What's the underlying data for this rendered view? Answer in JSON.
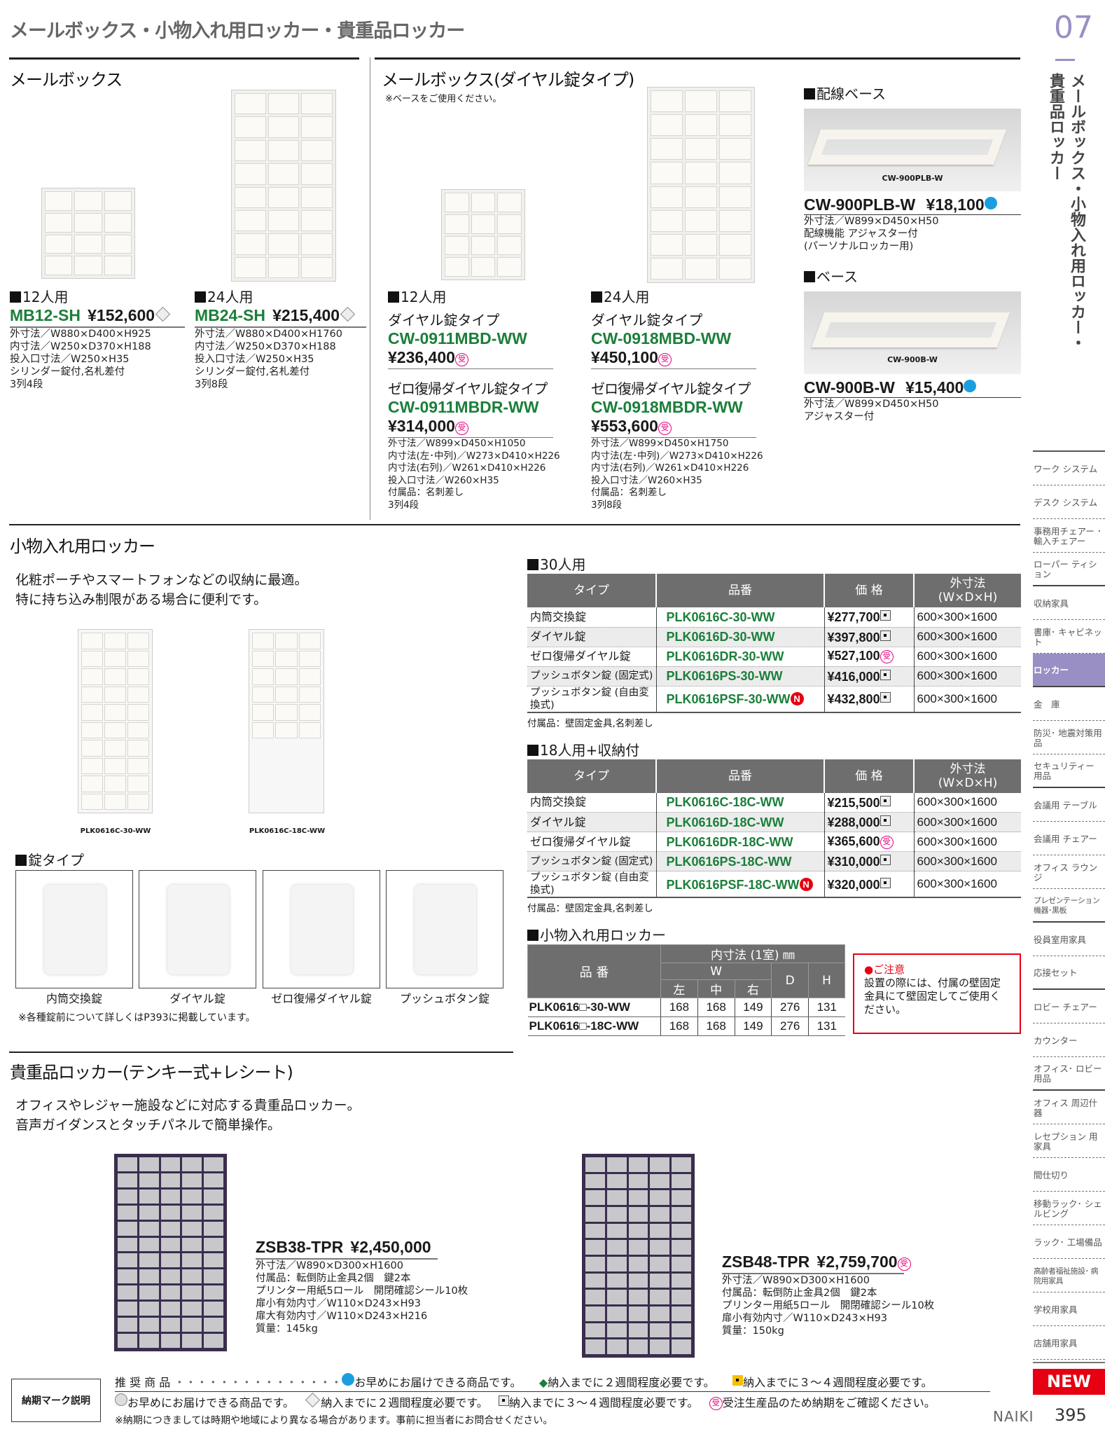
{
  "header": {
    "title": "メールボックス・小物入れ用ロッカー・貴重品ロッカー",
    "chapter": "07",
    "vertical_title_1": "メールボックス・小物入れ用ロッカー・",
    "vertical_title_2": "貴重品ロッカー"
  },
  "mailbox": {
    "heading": "メールボックス",
    "items": [
      {
        "label": "12人用",
        "model": "MB12-SH",
        "price": "¥152,600",
        "mark": "diamond",
        "specs": [
          "外寸法／W880×D400×H925",
          "内寸法／W250×D370×H188",
          "投入口寸法／W250×H35",
          "シリンダー錠付,名札差付",
          "3列4段"
        ]
      },
      {
        "label": "24人用",
        "model": "MB24-SH",
        "price": "¥215,400",
        "mark": "diamond",
        "specs": [
          "外寸法／W880×D400×H1760",
          "内寸法／W250×D370×H188",
          "投入口寸法／W250×H35",
          "シリンダー錠付,名札差付",
          "3列8段"
        ]
      }
    ]
  },
  "dial_mailbox": {
    "heading": "メールボックス(ダイヤル錠タイプ)",
    "note": "※ベースをご使用ください。",
    "items": [
      {
        "label": "12人用",
        "type1": "ダイヤル錠タイプ",
        "model1": "CW-0911MBD-WW",
        "price1": "¥236,400",
        "type2": "ゼロ復帰ダイヤル錠タイプ",
        "model2": "CW-0911MBDR-WW",
        "price2": "¥314,000",
        "specs": [
          "外寸法／W899×D450×H1050",
          "内寸法(左･中列)／W273×D410×H226",
          "内寸法(右列)／W261×D410×H226",
          "投入口寸法／W260×H35",
          "付属品：名刺差し",
          "3列4段"
        ]
      },
      {
        "label": "24人用",
        "type1": "ダイヤル錠タイプ",
        "model1": "CW-0918MBD-WW",
        "price1": "¥450,100",
        "type2": "ゼロ復帰ダイヤル錠タイプ",
        "model2": "CW-0918MBDR-WW",
        "price2": "¥553,600",
        "specs": [
          "外寸法／W899×D450×H1750",
          "内寸法(左･中列)／W273×D410×H226",
          "内寸法(右列)／W261×D410×H226",
          "投入口寸法／W260×H35",
          "付属品：名刺差し",
          "3列8段"
        ]
      }
    ]
  },
  "bases": [
    {
      "heading": "配線ベース",
      "img_label": "CW-900PLB-W",
      "model": "CW-900PLB-W",
      "price": "¥18,100",
      "specs": [
        "外寸法／W899×D450×H50",
        "配線機能 アジャスター付",
        "(パーソナルロッカー用)"
      ]
    },
    {
      "heading": "ベース",
      "img_label": "CW-900B-W",
      "model": "CW-900B-W",
      "price": "¥15,400",
      "specs": [
        "外寸法／W899×D450×H50",
        "アジャスター付"
      ]
    }
  ],
  "small_locker": {
    "heading": "小物入れ用ロッカー",
    "desc": [
      "化粧ポーチやスマートフォンなどの収納に最適。",
      "特に持ち込み制限がある場合に便利です。"
    ],
    "img_labels": [
      "PLK0616C-30-WW",
      "PLK0616C-18C-WW"
    ],
    "lock_heading": "錠タイプ",
    "locks": [
      "内筒交換錠",
      "ダイヤル錠",
      "ゼロ復帰ダイヤル錠",
      "プッシュボタン錠"
    ],
    "lock_note": "※各種錠前について詳しくはP393に掲載しています。",
    "headers": [
      "タイプ",
      "品番",
      "価 格",
      "外寸法",
      "(W×D×H)"
    ],
    "t30": {
      "heading": "30人用",
      "note": "付属品：壁固定金具,名刺差し",
      "rows": [
        {
          "type": "内筒交換錠",
          "model": "PLK0616C-30-WW",
          "price": "¥277,700",
          "mark": "square",
          "size": "600×300×1600"
        },
        {
          "type": "ダイヤル錠",
          "model": "PLK0616D-30-WW",
          "price": "¥397,800",
          "mark": "square",
          "size": "600×300×1600"
        },
        {
          "type": "ゼロ復帰ダイヤル錠",
          "model": "PLK0616DR-30-WW",
          "price": "¥527,100",
          "mark": "uke",
          "size": "600×300×1600"
        },
        {
          "type": "プッシュボタン錠 (固定式)",
          "model": "PLK0616PS-30-WW",
          "price": "¥416,000",
          "mark": "square",
          "size": "600×300×1600"
        },
        {
          "type": "プッシュボタン錠 (自由変換式)",
          "model": "PLK0616PSF-30-WW",
          "new": true,
          "price": "¥432,800",
          "mark": "square",
          "size": "600×300×1600"
        }
      ]
    },
    "t18": {
      "heading": "18人用+収納付",
      "note": "付属品：壁固定金具,名刺差し",
      "rows": [
        {
          "type": "内筒交換錠",
          "model": "PLK0616C-18C-WW",
          "price": "¥215,500",
          "mark": "square",
          "size": "600×300×1600"
        },
        {
          "type": "ダイヤル錠",
          "model": "PLK0616D-18C-WW",
          "price": "¥288,000",
          "mark": "square",
          "size": "600×300×1600"
        },
        {
          "type": "ゼロ復帰ダイヤル錠",
          "model": "PLK0616DR-18C-WW",
          "price": "¥365,600",
          "mark": "uke",
          "size": "600×300×1600"
        },
        {
          "type": "プッシュボタン錠 (固定式)",
          "model": "PLK0616PS-18C-WW",
          "price": "¥310,000",
          "mark": "square",
          "size": "600×300×1600"
        },
        {
          "type": "プッシュボタン錠 (自由変換式)",
          "model": "PLK0616PSF-18C-WW",
          "new": true,
          "price": "¥320,000",
          "mark": "square",
          "size": "600×300×1600"
        }
      ]
    },
    "dims": {
      "heading": "小物入れ用ロッカー",
      "h_model": "品 番",
      "h_inner": "内寸法 (1室) ㎜",
      "h_w": "W",
      "h_d": "D",
      "h_h": "H",
      "h_l": "左",
      "h_c": "中",
      "h_r": "右",
      "rows": [
        [
          "PLK0616□-30-WW",
          "168",
          "168",
          "149",
          "276",
          "131"
        ],
        [
          "PLK0616□-18C-WW",
          "168",
          "168",
          "149",
          "276",
          "131"
        ]
      ]
    },
    "caution": {
      "title": "●ご注意",
      "text": "設置の際には、付属の壁固定金具にて壁固定してご使用ください。"
    }
  },
  "valuables": {
    "heading": "貴重品ロッカー(テンキー式+レシート)",
    "desc": [
      "オフィスやレジャー施設などに対応する貴重品ロッカー。",
      "音声ガイダンスとタッチパネルで簡単操作。"
    ],
    "items": [
      {
        "model": "ZSB38-TPR",
        "price": "¥2,450,000",
        "specs": [
          "外寸法／W890×D300×H1600",
          "付属品：転倒防止金具2個　鍵2本",
          "プリンター用紙5ロール　開閉確認シール10枚",
          "扉小有効内寸／W110×D243×H93",
          "扉大有効内寸／W110×D243×H216",
          "質量：145kg"
        ]
      },
      {
        "model": "ZSB48-TPR",
        "price": "¥2,759,700",
        "specs": [
          "外寸法／W890×D300×H1600",
          "付属品：転倒防止金具2個　鍵2本",
          "プリンター用紙5ロール　開閉確認シール10枚",
          "扉小有効内寸／W110×D243×H93",
          "質量：150kg"
        ]
      }
    ]
  },
  "legend": {
    "label": "納期マーク説明",
    "recommend": "推 奨 商 品",
    "dots": "・・・・・・・・・・・・・・・",
    "r1": "お早めにお届けできる商品です。",
    "r2": "納入までに２週間程度必要です。",
    "r3": "納入までに３～４週間程度必要です。",
    "n1": "お早めにお届けできる商品です。",
    "n2": "納入までに２週間程度必要です。",
    "n3": "納入までに３～４週間程度必要です。",
    "n4": "受注生産品のため納期をご確認ください。",
    "note": "※納期につきましては時期や地域により異なる場合があります。事前に担当者にお問合せください。"
  },
  "nav": {
    "items": [
      "ワーク システム",
      "デスク システム",
      "事務用チェアー ･輸入チェアー",
      "ローパー ティション",
      "収納家具",
      "書庫･ キャビネット",
      "ロッカー",
      "金　庫",
      "防災･ 地震対策用品",
      "セキュリティー 用品",
      "会議用 テーブル",
      "会議用 チェアー",
      "オフィス ラウンジ",
      "プレゼンテーション 機器･黒板",
      "役員室用家具",
      "応接セット",
      "ロビー チェアー",
      "カウンター",
      "オフィス･ ロビー用品",
      "オフィス 周辺什器",
      "レセプション 用家具",
      "間仕切り",
      "移動ラック･ シェルビング",
      "ラック･ 工場備品",
      "高齢者福祉施設･ 病院用家具",
      "学校用家具",
      "店舗用家具"
    ],
    "selected": "ロッカー"
  },
  "footer": {
    "new_badge": "NEW",
    "brand": "NAIKI",
    "page": "395"
  },
  "colors": {
    "accent": "#9a8fc4",
    "model_green": "#1b7f3a",
    "uke_pink": "#e5007e",
    "dot_blue": "#1a9ee0",
    "new_red": "#e60012"
  }
}
